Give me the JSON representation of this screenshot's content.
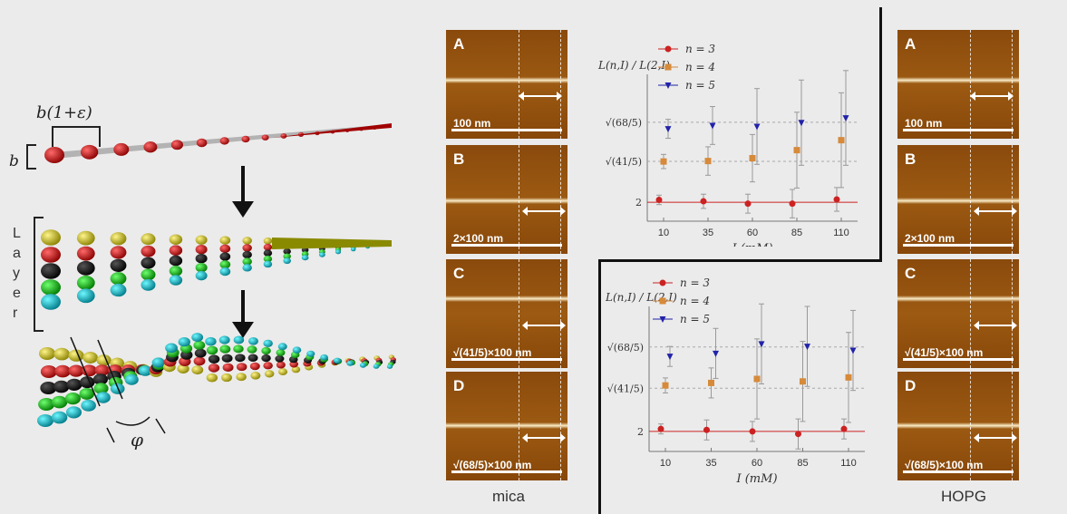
{
  "schematic": {
    "bond_label": "b(1+ε)",
    "b_label": "b",
    "layer_label": [
      "L",
      "a",
      "y",
      "e",
      "r"
    ],
    "phi_label": "φ"
  },
  "panels": {
    "mica": {
      "title": "mica",
      "letters": [
        "A",
        "B",
        "C",
        "D"
      ],
      "scales": [
        "100 nm",
        "2×100 nm",
        "√(41/5)×100 nm",
        "√(68/5)×100 nm"
      ]
    },
    "hopg": {
      "title": "HOPG",
      "letters": [
        "A",
        "B",
        "C",
        "D"
      ],
      "scales": [
        "100 nm",
        "2×100 nm",
        "√(41/5)×100 nm",
        "√(68/5)×100 nm"
      ]
    }
  },
  "chart_data": [
    {
      "type": "scatter",
      "ylabel": "L(n,I) / L(2,I)",
      "xlabel": "I (mM)",
      "categories": [
        "10",
        "35",
        "60",
        "85",
        "110"
      ],
      "yticks": [
        "2",
        "√(41/5)",
        "√(68/5)"
      ],
      "series": [
        {
          "name": "n = 3",
          "color": "#cc2222",
          "marker": "circle",
          "values": [
            2.05,
            2.02,
            1.97,
            1.97,
            2.06
          ],
          "err": [
            0.1,
            0.15,
            0.2,
            0.3,
            0.25
          ]
        },
        {
          "name": "n = 4",
          "color": "#d68a3a",
          "marker": "square",
          "values": [
            2.86,
            2.87,
            2.93,
            3.1,
            3.31
          ],
          "err": [
            0.15,
            0.3,
            0.5,
            0.8,
            1.0
          ]
        },
        {
          "name": "n = 5",
          "color": "#2222aa",
          "marker": "triangle",
          "values": [
            3.55,
            3.62,
            3.6,
            3.68,
            3.78
          ],
          "err": [
            0.2,
            0.4,
            0.8,
            0.9,
            1.0
          ]
        }
      ]
    },
    {
      "type": "scatter",
      "ylabel": "L(n,I) / L(2,I)",
      "xlabel": "I (mM)",
      "categories": [
        "10",
        "35",
        "60",
        "85",
        "110"
      ],
      "yticks": [
        "2",
        "√(41/5)",
        "√(68/5)"
      ],
      "series": [
        {
          "name": "n = 3",
          "color": "#cc2222",
          "marker": "circle",
          "values": [
            2.05,
            2.03,
            2.0,
            1.95,
            2.05
          ],
          "err": [
            0.1,
            0.2,
            0.2,
            0.3,
            0.2
          ]
        },
        {
          "name": "n = 4",
          "color": "#d68a3a",
          "marker": "square",
          "values": [
            2.92,
            2.97,
            3.05,
            3.0,
            3.08
          ],
          "err": [
            0.15,
            0.3,
            0.8,
            0.8,
            0.9
          ]
        },
        {
          "name": "n = 5",
          "color": "#2222aa",
          "marker": "triangle",
          "values": [
            3.5,
            3.56,
            3.75,
            3.7,
            3.62
          ],
          "err": [
            0.2,
            0.5,
            0.8,
            0.8,
            0.8
          ]
        }
      ]
    }
  ]
}
